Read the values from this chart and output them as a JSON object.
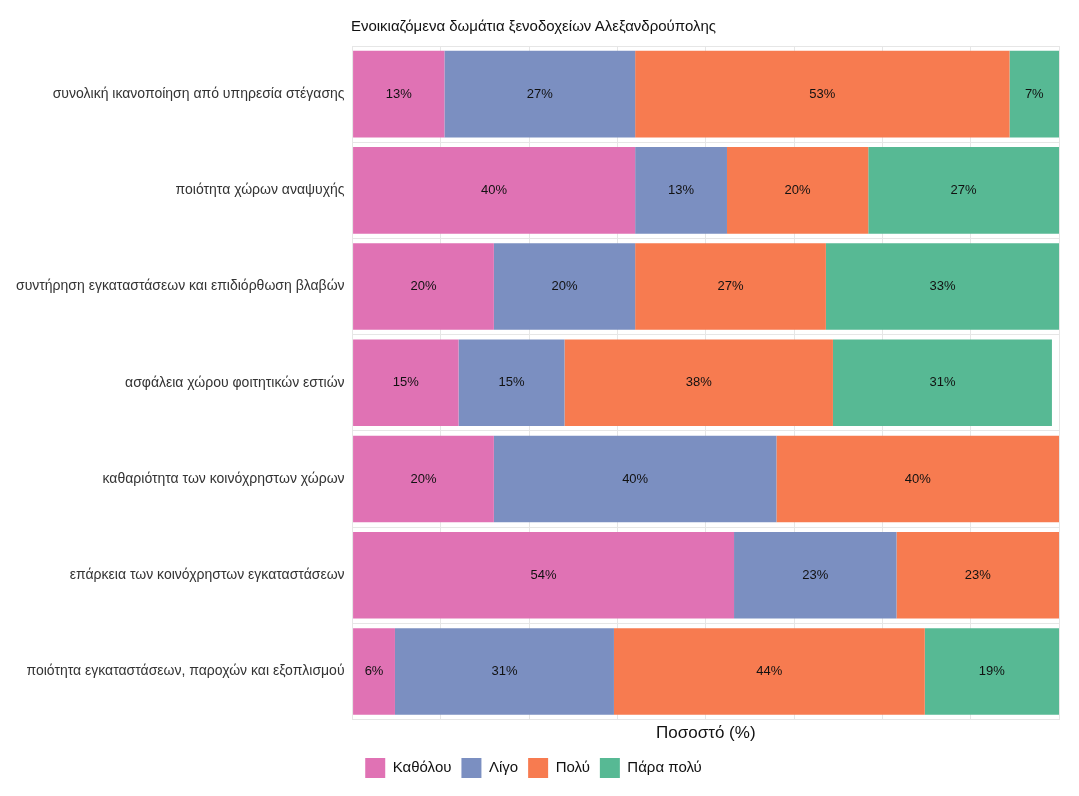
{
  "chart_data": {
    "type": "bar",
    "orientation": "horizontal",
    "stacked": true,
    "title": "Ενοικιαζόμενα δωμάτια ξενοδοχείων Αλεξανδρούπολης",
    "xlabel": "Ποσοστό (%)",
    "categories": [
      "συνολική ικανοποίηση από υπηρεσία στέγασης",
      "ποιότητα χώρων αναψυχής",
      "συντήρηση εγκαταστάσεων και επιδιόρθωση βλαβών",
      "ασφάλεια χώρου φοιτητικών εστιών",
      "καθαριότητα των κοινόχρηστων χώρων",
      "επάρκεια των κοινόχρηστων εγκαταστάσεων",
      "ποιότητα εγκαταστάσεων, παροχών και εξοπλισμού"
    ],
    "series": [
      {
        "name": "Καθόλου",
        "color": "#e072b4",
        "values": [
          13,
          40,
          20,
          15,
          20,
          54,
          6
        ],
        "value_labels": [
          "13%",
          "40%",
          "20%",
          "15%",
          "20%",
          "54%",
          "6%"
        ]
      },
      {
        "name": "Λίγο",
        "color": "#7b8fc1",
        "values": [
          27,
          13,
          20,
          15,
          40,
          23,
          31
        ],
        "value_labels": [
          "27%",
          "13%",
          "20%",
          "15%",
          "40%",
          "23%",
          "31%"
        ]
      },
      {
        "name": "Πολύ",
        "color": "#f77b50",
        "values": [
          53,
          20,
          27,
          38,
          40,
          23,
          44
        ],
        "value_labels": [
          "53%",
          "20%",
          "27%",
          "38%",
          "40%",
          "23%",
          "44%"
        ]
      },
      {
        "name": "Πάρα πολύ",
        "color": "#57b994",
        "values": [
          7,
          27,
          33,
          31,
          null,
          null,
          19
        ],
        "value_labels": [
          "7%",
          "27%",
          "33%",
          "31%",
          null,
          null,
          "19%"
        ]
      }
    ],
    "xlim": [
      0,
      100
    ],
    "xticks": [
      {
        "value": 0,
        "label": null
      },
      {
        "value": 12.5,
        "label": null
      },
      {
        "value": 25,
        "label": null
      },
      {
        "value": 37.5,
        "label": null
      },
      {
        "value": 50,
        "label": null
      },
      {
        "value": 62.5,
        "label": null
      },
      {
        "value": 75,
        "label": null
      },
      {
        "value": 87.5,
        "label": null
      },
      {
        "value": 100,
        "label": null
      }
    ],
    "tick_labels": "y",
    "grid": true,
    "legend": "bottom"
  }
}
